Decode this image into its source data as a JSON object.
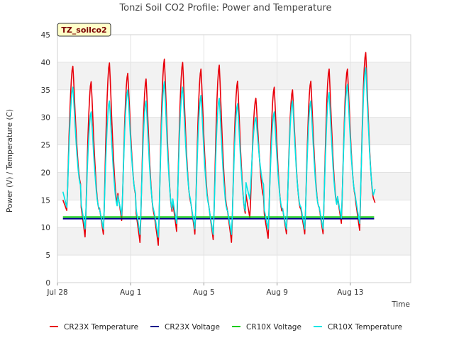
{
  "chart_data": {
    "type": "line",
    "title": "Tonzi Soil CO2 Profile: Power and Temperature",
    "badge": "TZ_soilco2",
    "xlabel": "Time",
    "ylabel": "Power (V) / Temperature (C)",
    "xlim": [
      0,
      19.3
    ],
    "ylim": [
      0,
      45
    ],
    "y_ticks": [
      0,
      5,
      10,
      15,
      20,
      25,
      30,
      35,
      40,
      45
    ],
    "x_ticks": [
      {
        "value": 0,
        "label": "Jul 28"
      },
      {
        "value": 4,
        "label": "Aug 1"
      },
      {
        "value": 8,
        "label": "Aug 5"
      },
      {
        "value": 12,
        "label": "Aug 9"
      },
      {
        "value": 16,
        "label": "Aug 13"
      }
    ],
    "x_unit": "days since Jul 28",
    "grid": true,
    "legend_position": "bottom",
    "series": [
      {
        "name": "CR23X Temperature",
        "color": "#e8000b",
        "daily_min": [
          13.0,
          8.0,
          8.5,
          11.0,
          7.0,
          6.5,
          9.0,
          8.5,
          7.5,
          7.0,
          11.5,
          7.8,
          8.6,
          8.6,
          8.6,
          10.5,
          9.2
        ],
        "daily_max": [
          39.3,
          36.5,
          39.9,
          38.0,
          37.0,
          40.6,
          40.0,
          38.8,
          39.5,
          36.6,
          33.5,
          35.5,
          35.0,
          36.6,
          38.8,
          38.8,
          41.8
        ],
        "start_value": 15.0,
        "end_value": 14.5
      },
      {
        "name": "CR23X Voltage",
        "color": "#00008b",
        "values": [
          [
            0.3,
            11.6
          ],
          [
            17.3,
            11.6
          ]
        ]
      },
      {
        "name": "CR10X Voltage",
        "color": "#00cc00",
        "values": [
          [
            0.3,
            11.9
          ],
          [
            17.3,
            11.9
          ]
        ]
      },
      {
        "name": "CR10X Temperature",
        "color": "#00e5e5",
        "daily_min": [
          13.5,
          9.5,
          9.5,
          12.0,
          8.5,
          8.0,
          10.5,
          9.5,
          8.5,
          8.5,
          15.0,
          9.5,
          9.5,
          9.5,
          9.5,
          11.5,
          10.5
        ],
        "daily_max": [
          35.5,
          31.0,
          33.0,
          35.0,
          33.0,
          36.5,
          35.5,
          34.0,
          33.5,
          32.5,
          30.0,
          31.0,
          33.0,
          33.0,
          34.5,
          36.0,
          39.0
        ],
        "start_value": 16.5,
        "end_value": 17.0
      }
    ]
  }
}
